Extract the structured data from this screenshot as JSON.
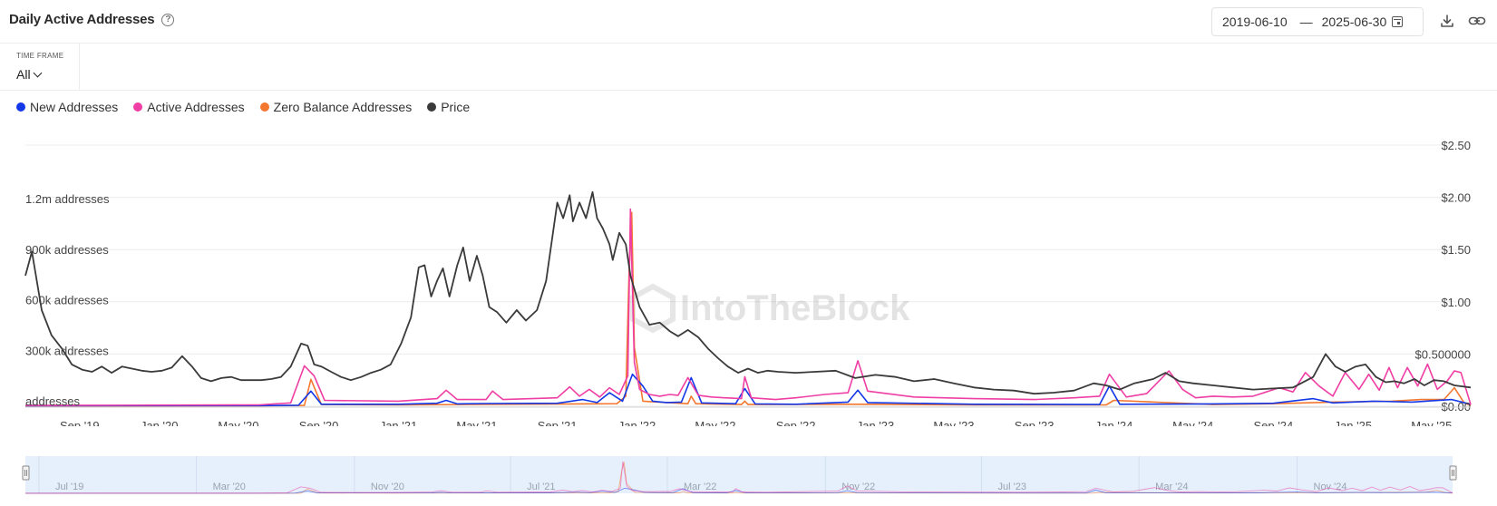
{
  "header": {
    "title": "Daily Active Addresses",
    "date_start": "2019-06-10",
    "date_separator": "—",
    "date_end": "2025-06-30"
  },
  "icons": [
    "help-icon",
    "calendar-icon",
    "download-icon",
    "link-icon"
  ],
  "timeframe": {
    "label": "TIME FRAME",
    "value": "All"
  },
  "watermark": "IntoTheBlock",
  "colors": {
    "new": "#1338e8",
    "active": "#ef3ea4",
    "zero": "#f3772f",
    "price": "#3a3a3a",
    "nav_fill": "#e5f0fc"
  },
  "chart_data": {
    "type": "line",
    "title": "Daily Active Addresses",
    "y_left": {
      "ticks": [
        {
          "value": 0,
          "label": "addresses"
        },
        {
          "value": 300000,
          "label": "300k addresses"
        },
        {
          "value": 600000,
          "label": "600k addresses"
        },
        {
          "value": 900000,
          "label": "900k addresses"
        },
        {
          "value": 1200000,
          "label": "1.2m addresses"
        }
      ],
      "range": [
        0,
        1200000
      ]
    },
    "y_right": {
      "ticks": [
        {
          "value": 0,
          "label": "$0.00"
        },
        {
          "value": 0.5,
          "label": "$0.500000"
        },
        {
          "value": 1.0,
          "label": "$1.00"
        },
        {
          "value": 1.5,
          "label": "$1.50"
        },
        {
          "value": 2.0,
          "label": "$2.00"
        },
        {
          "value": 2.5,
          "label": "$2.50"
        }
      ],
      "range": [
        0,
        2.5
      ]
    },
    "x_range": [
      "2019-06-10",
      "2025-06-30"
    ],
    "x_ticks": [
      {
        "date": "2019-09-01",
        "label": "Sep '19"
      },
      {
        "date": "2020-01-01",
        "label": "Jan '20"
      },
      {
        "date": "2020-05-01",
        "label": "May '20"
      },
      {
        "date": "2020-09-01",
        "label": "Sep '20"
      },
      {
        "date": "2021-01-01",
        "label": "Jan '21"
      },
      {
        "date": "2021-05-01",
        "label": "May '21"
      },
      {
        "date": "2021-09-01",
        "label": "Sep '21"
      },
      {
        "date": "2022-01-01",
        "label": "Jan '22"
      },
      {
        "date": "2022-05-01",
        "label": "May '22"
      },
      {
        "date": "2022-09-01",
        "label": "Sep '22"
      },
      {
        "date": "2023-01-01",
        "label": "Jan '23"
      },
      {
        "date": "2023-05-01",
        "label": "May '23"
      },
      {
        "date": "2023-09-01",
        "label": "Sep '23"
      },
      {
        "date": "2024-01-01",
        "label": "Jan '24"
      },
      {
        "date": "2024-05-01",
        "label": "May '24"
      },
      {
        "date": "2024-09-01",
        "label": "Sep '24"
      },
      {
        "date": "2025-01-01",
        "label": "Jan '25"
      },
      {
        "date": "2025-05-01",
        "label": "May '25"
      }
    ],
    "navigator_ticks": [
      {
        "date": "2019-07-01",
        "label": "Jul '19"
      },
      {
        "date": "2020-03-01",
        "label": "Mar '20"
      },
      {
        "date": "2020-11-01",
        "label": "Nov '20"
      },
      {
        "date": "2021-07-01",
        "label": "Jul '21"
      },
      {
        "date": "2022-03-01",
        "label": "Mar '22"
      },
      {
        "date": "2022-11-01",
        "label": "Nov '22"
      },
      {
        "date": "2023-07-01",
        "label": "Jul '23"
      },
      {
        "date": "2024-03-01",
        "label": "Mar '24"
      },
      {
        "date": "2024-11-01",
        "label": "Nov '24"
      }
    ],
    "legend_position": "top-left",
    "grid": true,
    "series": [
      {
        "name": "New Addresses",
        "axis": "left",
        "color": "#1338e8",
        "x": [
          "2019-06-10",
          "2020-06-01",
          "2020-08-01",
          "2020-08-20",
          "2020-09-05",
          "2021-01-01",
          "2021-03-01",
          "2021-03-15",
          "2021-04-01",
          "2021-05-15",
          "2021-09-01",
          "2021-10-10",
          "2021-11-01",
          "2021-11-20",
          "2021-12-10",
          "2021-12-25",
          "2022-01-10",
          "2022-01-25",
          "2022-02-15",
          "2022-03-10",
          "2022-03-25",
          "2022-04-10",
          "2022-06-01",
          "2022-06-15",
          "2022-07-01",
          "2022-09-01",
          "2022-11-20",
          "2022-12-05",
          "2022-12-20",
          "2023-06-01",
          "2023-12-10",
          "2023-12-25",
          "2024-01-10",
          "2024-06-01",
          "2024-09-01",
          "2024-11-01",
          "2024-12-01",
          "2025-02-01",
          "2025-04-01",
          "2025-06-01",
          "2025-06-30"
        ],
        "y": [
          3000,
          4000,
          6000,
          90000,
          12000,
          12000,
          18000,
          35000,
          14000,
          16000,
          18000,
          40000,
          22000,
          80000,
          30000,
          190000,
          120000,
          30000,
          22000,
          25000,
          170000,
          20000,
          15000,
          105000,
          14000,
          12000,
          25000,
          95000,
          22000,
          12000,
          10000,
          120000,
          12000,
          14000,
          18000,
          45000,
          20000,
          30000,
          25000,
          40000,
          12000
        ]
      },
      {
        "name": "Active Addresses",
        "axis": "left",
        "color": "#ef3ea4",
        "x": [
          "2019-06-10",
          "2020-06-01",
          "2020-07-20",
          "2020-08-10",
          "2020-08-25",
          "2020-09-10",
          "2021-01-01",
          "2021-03-01",
          "2021-03-15",
          "2021-04-01",
          "2021-05-15",
          "2021-05-25",
          "2021-06-10",
          "2021-09-01",
          "2021-09-20",
          "2021-10-05",
          "2021-10-20",
          "2021-11-05",
          "2021-11-20",
          "2021-12-05",
          "2021-12-18",
          "2021-12-22",
          "2021-12-28",
          "2022-01-05",
          "2022-01-20",
          "2022-02-05",
          "2022-02-20",
          "2022-03-05",
          "2022-03-20",
          "2022-04-05",
          "2022-04-25",
          "2022-05-15",
          "2022-06-10",
          "2022-06-15",
          "2022-06-25",
          "2022-08-01",
          "2022-09-01",
          "2022-10-15",
          "2022-11-20",
          "2022-12-05",
          "2022-12-20",
          "2023-03-01",
          "2023-06-01",
          "2023-09-01",
          "2023-11-01",
          "2023-12-10",
          "2023-12-25",
          "2024-01-20",
          "2024-02-20",
          "2024-03-10",
          "2024-03-25",
          "2024-04-15",
          "2024-05-05",
          "2024-06-01",
          "2024-07-01",
          "2024-08-01",
          "2024-09-10",
          "2024-10-01",
          "2024-10-20",
          "2024-11-10",
          "2024-12-01",
          "2024-12-20",
          "2025-01-10",
          "2025-01-25",
          "2025-02-10",
          "2025-02-25",
          "2025-03-10",
          "2025-03-25",
          "2025-04-10",
          "2025-04-25",
          "2025-05-10",
          "2025-05-25",
          "2025-06-05",
          "2025-06-15",
          "2025-06-30"
        ],
        "y": [
          5000,
          8000,
          20000,
          240000,
          180000,
          35000,
          30000,
          45000,
          95000,
          40000,
          40000,
          90000,
          40000,
          50000,
          115000,
          60000,
          100000,
          55000,
          110000,
          70000,
          180000,
          1170000,
          260000,
          100000,
          70000,
          60000,
          70000,
          65000,
          170000,
          65000,
          55000,
          50000,
          45000,
          175000,
          50000,
          40000,
          50000,
          70000,
          80000,
          270000,
          90000,
          55000,
          45000,
          40000,
          50000,
          60000,
          190000,
          55000,
          75000,
          150000,
          210000,
          100000,
          50000,
          60000,
          55000,
          60000,
          110000,
          85000,
          200000,
          120000,
          60000,
          200000,
          100000,
          190000,
          95000,
          230000,
          110000,
          230000,
          120000,
          250000,
          100000,
          150000,
          210000,
          200000,
          10000
        ]
      },
      {
        "name": "Zero Balance Addresses",
        "axis": "left",
        "color": "#f3772f",
        "x": [
          "2019-06-10",
          "2020-06-01",
          "2020-08-10",
          "2020-08-20",
          "2020-09-05",
          "2021-01-01",
          "2021-12-01",
          "2021-12-15",
          "2021-12-20",
          "2021-12-24",
          "2021-12-28",
          "2022-01-10",
          "2022-03-20",
          "2022-03-25",
          "2022-04-01",
          "2022-06-10",
          "2022-06-15",
          "2022-06-20",
          "2022-12-05",
          "2023-06-01",
          "2023-12-20",
          "2024-01-01",
          "2024-06-01",
          "2024-09-01",
          "2024-12-01",
          "2025-03-01",
          "2025-04-15",
          "2025-05-20",
          "2025-06-05",
          "2025-06-20",
          "2025-06-30"
        ],
        "y": [
          2000,
          3000,
          5000,
          160000,
          10000,
          8000,
          15000,
          60000,
          800000,
          1150000,
          350000,
          30000,
          15000,
          60000,
          15000,
          10000,
          30000,
          10000,
          12000,
          8000,
          8000,
          35000,
          10000,
          15000,
          25000,
          30000,
          40000,
          40000,
          110000,
          20000,
          5000
        ]
      },
      {
        "name": "Price",
        "axis": "right",
        "color": "#3a3a3a",
        "x": [
          "2019-06-10",
          "2019-06-20",
          "2019-07-05",
          "2019-07-20",
          "2019-08-05",
          "2019-08-20",
          "2019-09-05",
          "2019-09-20",
          "2019-10-05",
          "2019-10-20",
          "2019-11-05",
          "2019-11-20",
          "2019-12-05",
          "2019-12-20",
          "2020-01-05",
          "2020-01-20",
          "2020-02-05",
          "2020-02-20",
          "2020-03-05",
          "2020-03-20",
          "2020-04-05",
          "2020-04-20",
          "2020-05-05",
          "2020-05-20",
          "2020-06-05",
          "2020-06-20",
          "2020-07-05",
          "2020-07-20",
          "2020-08-05",
          "2020-08-15",
          "2020-08-25",
          "2020-09-05",
          "2020-09-20",
          "2020-10-05",
          "2020-10-20",
          "2020-11-05",
          "2020-11-20",
          "2020-12-05",
          "2020-12-20",
          "2021-01-05",
          "2021-01-20",
          "2021-02-01",
          "2021-02-10",
          "2021-02-20",
          "2021-03-01",
          "2021-03-10",
          "2021-03-20",
          "2021-04-01",
          "2021-04-10",
          "2021-04-20",
          "2021-05-01",
          "2021-05-10",
          "2021-05-20",
          "2021-06-01",
          "2021-06-15",
          "2021-07-01",
          "2021-07-15",
          "2021-08-01",
          "2021-08-15",
          "2021-09-01",
          "2021-09-10",
          "2021-09-20",
          "2021-09-25",
          "2021-10-05",
          "2021-10-15",
          "2021-10-25",
          "2021-11-01",
          "2021-11-10",
          "2021-11-20",
          "2021-11-25",
          "2021-12-05",
          "2021-12-15",
          "2021-12-22",
          "2022-01-05",
          "2022-01-20",
          "2022-02-05",
          "2022-02-20",
          "2022-03-05",
          "2022-03-20",
          "2022-04-05",
          "2022-04-20",
          "2022-05-05",
          "2022-05-20",
          "2022-06-05",
          "2022-06-20",
          "2022-07-05",
          "2022-07-20",
          "2022-08-05",
          "2022-09-01",
          "2022-10-01",
          "2022-11-01",
          "2022-12-01",
          "2023-01-01",
          "2023-02-01",
          "2023-03-01",
          "2023-04-01",
          "2023-05-01",
          "2023-06-01",
          "2023-07-01",
          "2023-08-01",
          "2023-09-01",
          "2023-10-01",
          "2023-11-01",
          "2023-12-01",
          "2023-12-20",
          "2024-01-10",
          "2024-02-01",
          "2024-03-01",
          "2024-03-20",
          "2024-04-10",
          "2024-05-01",
          "2024-06-01",
          "2024-07-01",
          "2024-08-01",
          "2024-09-01",
          "2024-10-01",
          "2024-11-01",
          "2024-11-20",
          "2024-12-05",
          "2024-12-20",
          "2025-01-05",
          "2025-01-20",
          "2025-02-05",
          "2025-02-20",
          "2025-03-05",
          "2025-03-20",
          "2025-04-05",
          "2025-04-20",
          "2025-05-05",
          "2025-05-20",
          "2025-06-05",
          "2025-06-30"
        ],
        "y": [
          1.25,
          1.48,
          0.92,
          0.68,
          0.55,
          0.4,
          0.35,
          0.33,
          0.38,
          0.32,
          0.38,
          0.36,
          0.34,
          0.33,
          0.34,
          0.37,
          0.48,
          0.38,
          0.27,
          0.24,
          0.27,
          0.28,
          0.25,
          0.25,
          0.25,
          0.26,
          0.28,
          0.38,
          0.6,
          0.58,
          0.4,
          0.38,
          0.33,
          0.28,
          0.25,
          0.28,
          0.32,
          0.35,
          0.4,
          0.6,
          0.85,
          1.33,
          1.35,
          1.05,
          1.2,
          1.32,
          1.05,
          1.35,
          1.52,
          1.2,
          1.44,
          1.25,
          0.95,
          0.9,
          0.8,
          0.92,
          0.82,
          0.92,
          1.2,
          1.95,
          1.8,
          2.02,
          1.77,
          1.95,
          1.8,
          2.05,
          1.8,
          1.7,
          1.55,
          1.4,
          1.66,
          1.55,
          1.25,
          0.95,
          0.78,
          0.8,
          0.72,
          0.67,
          0.73,
          0.66,
          0.55,
          0.46,
          0.38,
          0.32,
          0.36,
          0.32,
          0.34,
          0.33,
          0.32,
          0.33,
          0.34,
          0.27,
          0.3,
          0.28,
          0.24,
          0.26,
          0.22,
          0.18,
          0.16,
          0.15,
          0.12,
          0.13,
          0.15,
          0.22,
          0.2,
          0.16,
          0.22,
          0.26,
          0.32,
          0.24,
          0.22,
          0.2,
          0.18,
          0.16,
          0.17,
          0.18,
          0.28,
          0.5,
          0.38,
          0.33,
          0.38,
          0.4,
          0.28,
          0.23,
          0.24,
          0.22,
          0.26,
          0.2,
          0.25,
          0.24,
          0.2,
          0.18
        ]
      }
    ]
  }
}
